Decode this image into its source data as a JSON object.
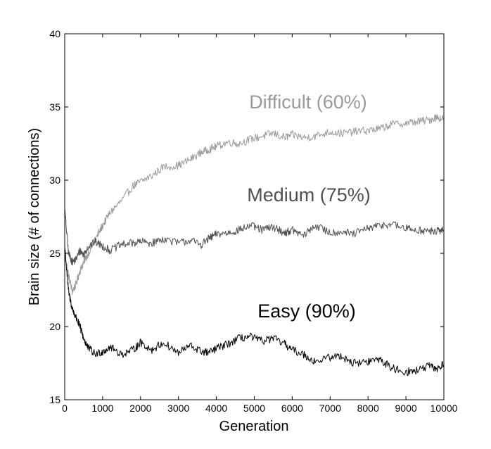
{
  "chart_data": {
    "type": "line",
    "title": "",
    "xlabel": "Generation",
    "ylabel": "Brain size (# of connections)",
    "xlim": [
      0,
      10000
    ],
    "ylim": [
      15,
      40
    ],
    "x_ticks": [
      0,
      1000,
      2000,
      3000,
      4000,
      5000,
      6000,
      7000,
      8000,
      9000,
      10000
    ],
    "y_ticks": [
      15,
      20,
      25,
      30,
      35,
      40
    ],
    "grid": false,
    "series": [
      {
        "name": "Difficult (60%)",
        "color": "#9a9a9a",
        "x": [
          0,
          100,
          200,
          300,
          400,
          500,
          600,
          800,
          1000,
          1200,
          1500,
          1800,
          2000,
          2300,
          2600,
          3000,
          3300,
          3600,
          3800,
          4000,
          4300,
          4600,
          4900,
          5200,
          5500,
          5800,
          6000,
          6300,
          6600,
          7000,
          7300,
          7600,
          8000,
          8300,
          8600,
          9000,
          9300,
          9600,
          9800,
          10000
        ],
        "values": [
          25.2,
          23.5,
          22.4,
          22.9,
          23.8,
          24.4,
          24.9,
          25.9,
          26.9,
          27.8,
          28.6,
          29.6,
          29.9,
          30.3,
          30.9,
          31.0,
          31.4,
          31.9,
          32.1,
          32.3,
          32.6,
          32.5,
          32.8,
          33.0,
          33.2,
          32.9,
          33.1,
          32.9,
          33.0,
          33.3,
          33.2,
          33.3,
          33.4,
          33.5,
          33.8,
          33.9,
          34.0,
          34.1,
          34.3,
          34.2
        ]
      },
      {
        "name": "Medium (75%)",
        "color": "#505050",
        "x": [
          0,
          100,
          200,
          300,
          400,
          500,
          600,
          800,
          1000,
          1200,
          1500,
          1800,
          2000,
          2300,
          2600,
          3000,
          3300,
          3600,
          3800,
          4000,
          4300,
          4600,
          4900,
          5200,
          5500,
          5800,
          6000,
          6300,
          6600,
          7000,
          7300,
          7600,
          8000,
          8300,
          8600,
          9000,
          9300,
          9600,
          9800,
          10000
        ],
        "values": [
          28.0,
          25.0,
          24.4,
          24.6,
          25.2,
          24.9,
          25.4,
          25.8,
          25.5,
          25.2,
          25.6,
          25.7,
          25.8,
          25.7,
          26.0,
          25.7,
          25.9,
          25.6,
          26.0,
          26.3,
          26.4,
          26.6,
          26.9,
          26.6,
          26.8,
          26.4,
          26.6,
          26.2,
          26.9,
          26.4,
          26.5,
          26.3,
          26.7,
          26.9,
          27.0,
          26.7,
          26.6,
          26.5,
          26.5,
          26.6
        ]
      },
      {
        "name": "Easy (90%)",
        "color": "#000000",
        "x": [
          0,
          100,
          200,
          300,
          400,
          500,
          600,
          800,
          1000,
          1200,
          1500,
          1800,
          2000,
          2300,
          2600,
          3000,
          3300,
          3600,
          3800,
          4000,
          4300,
          4600,
          4900,
          5200,
          5500,
          5800,
          6000,
          6300,
          6600,
          7000,
          7300,
          7600,
          8000,
          8300,
          8600,
          9000,
          9300,
          9600,
          9800,
          10000
        ],
        "values": [
          25.5,
          22.4,
          21.2,
          20.6,
          20.0,
          19.2,
          18.6,
          18.1,
          18.3,
          18.6,
          18.1,
          18.4,
          18.9,
          18.4,
          18.9,
          18.2,
          18.7,
          18.3,
          18.2,
          18.5,
          18.8,
          19.2,
          19.3,
          19.0,
          19.2,
          18.8,
          18.4,
          18.1,
          17.6,
          17.9,
          18.0,
          17.5,
          17.6,
          17.8,
          17.2,
          16.9,
          17.0,
          17.3,
          17.1,
          17.4
        ]
      }
    ]
  }
}
